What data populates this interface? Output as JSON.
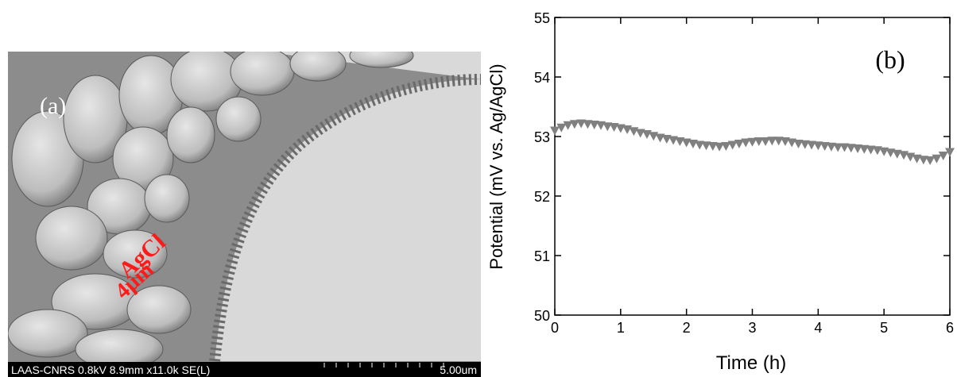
{
  "image_panel": {
    "label": "(a)",
    "annotation_lines": [
      "AgCl",
      "4µm"
    ],
    "info": "LAAS-CNRS 0.8kV 8.9mm x11.0k SE(L)",
    "scale": "5.00um"
  },
  "chart_data": {
    "type": "scatter",
    "panel_label": "(b)",
    "x_label": "Time (h)",
    "y_label": "Potential (mV vs. Ag/AgCl)",
    "color": "#808080",
    "x": [
      0,
      0.1,
      0.2,
      0.3,
      0.4,
      0.5,
      0.6,
      0.7,
      0.8,
      0.9,
      1.0,
      1.1,
      1.2,
      1.3,
      1.4,
      1.5,
      1.6,
      1.7,
      1.8,
      1.9,
      2.0,
      2.1,
      2.2,
      2.3,
      2.4,
      2.5,
      2.6,
      2.7,
      2.8,
      2.9,
      3.0,
      3.1,
      3.2,
      3.3,
      3.4,
      3.5,
      3.6,
      3.7,
      3.8,
      3.9,
      4.0,
      4.1,
      4.2,
      4.3,
      4.4,
      4.5,
      4.6,
      4.7,
      4.8,
      4.9,
      5.0,
      5.1,
      5.2,
      5.3,
      5.4,
      5.5,
      5.6,
      5.7,
      5.8,
      5.9,
      6.0
    ],
    "values": [
      53.1,
      53.15,
      53.19,
      53.21,
      53.22,
      53.21,
      53.2,
      53.19,
      53.17,
      53.16,
      53.14,
      53.12,
      53.09,
      53.06,
      53.04,
      53.01,
      52.98,
      52.96,
      52.94,
      52.92,
      52.9,
      52.88,
      52.86,
      52.85,
      52.84,
      52.83,
      52.84,
      52.86,
      52.88,
      52.9,
      52.91,
      52.92,
      52.92,
      52.93,
      52.93,
      52.92,
      52.9,
      52.88,
      52.87,
      52.86,
      52.85,
      52.84,
      52.83,
      52.82,
      52.82,
      52.81,
      52.8,
      52.79,
      52.78,
      52.77,
      52.75,
      52.73,
      52.71,
      52.69,
      52.66,
      52.63,
      52.61,
      52.6,
      52.63,
      52.68,
      52.74
    ],
    "xlim": [
      0,
      6
    ],
    "xticks": [
      0,
      1,
      2,
      3,
      4,
      5,
      6
    ],
    "ylim": [
      50,
      55
    ],
    "yticks": [
      50,
      51,
      52,
      53,
      54,
      55
    ]
  }
}
